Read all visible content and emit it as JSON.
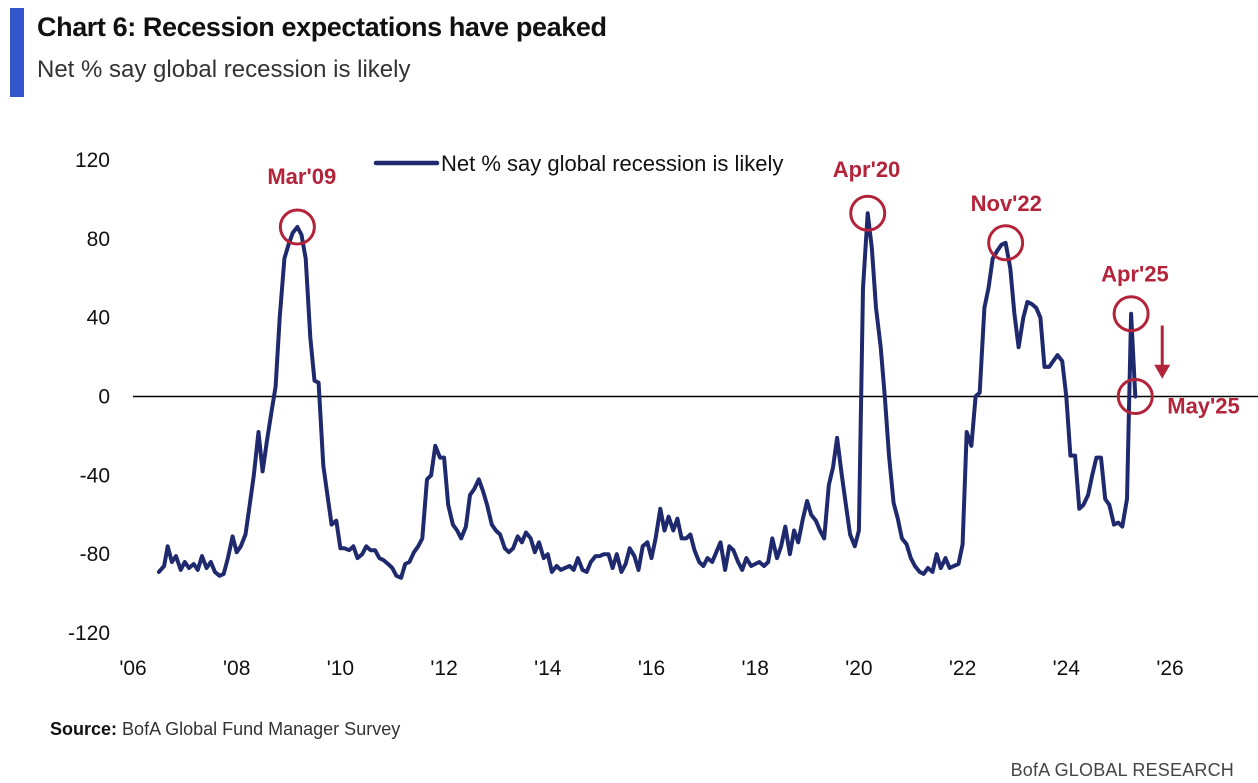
{
  "header": {
    "title": "Chart 6: Recession expectations have peaked",
    "subtitle": "Net % say global recession is likely"
  },
  "footer": {
    "source_label": "Source:",
    "source_text": "BofA Global Fund Manager Survey",
    "brand": "BofA GLOBAL RESEARCH"
  },
  "colors": {
    "accent": "#3355cc",
    "line": "#1f2a6e",
    "annotation": "#b3233a"
  },
  "chart_data": {
    "type": "line",
    "grid": false,
    "legend_position": "top",
    "xlim": [
      2006.0,
      2026.5
    ],
    "ylim": [
      -120,
      120
    ],
    "x_ticks": [
      {
        "value": 2006,
        "label": "'06"
      },
      {
        "value": 2008,
        "label": "'08"
      },
      {
        "value": 2010,
        "label": "'10"
      },
      {
        "value": 2012,
        "label": "'12"
      },
      {
        "value": 2014,
        "label": "'14"
      },
      {
        "value": 2016,
        "label": "'16"
      },
      {
        "value": 2018,
        "label": "'18"
      },
      {
        "value": 2020,
        "label": "'20"
      },
      {
        "value": 2022,
        "label": "'22"
      },
      {
        "value": 2024,
        "label": "'24"
      },
      {
        "value": 2026,
        "label": "'26"
      }
    ],
    "y_ticks": [
      {
        "value": 120,
        "label": "120"
      },
      {
        "value": 80,
        "label": "80"
      },
      {
        "value": 40,
        "label": "40"
      },
      {
        "value": 0,
        "label": "0"
      },
      {
        "value": -40,
        "label": "-40"
      },
      {
        "value": -80,
        "label": "-80"
      },
      {
        "value": -120,
        "label": "-120"
      }
    ],
    "series": [
      {
        "name": "Net % say global recession is likely",
        "points": [
          [
            2006.5,
            -89
          ],
          [
            2006.6,
            -86
          ],
          [
            2006.67,
            -76
          ],
          [
            2006.75,
            -84
          ],
          [
            2006.83,
            -81
          ],
          [
            2006.92,
            -88
          ],
          [
            2007.0,
            -84
          ],
          [
            2007.08,
            -87
          ],
          [
            2007.17,
            -85
          ],
          [
            2007.25,
            -88
          ],
          [
            2007.33,
            -81
          ],
          [
            2007.42,
            -87
          ],
          [
            2007.5,
            -84
          ],
          [
            2007.58,
            -89
          ],
          [
            2007.67,
            -91
          ],
          [
            2007.75,
            -90
          ],
          [
            2007.83,
            -82
          ],
          [
            2007.92,
            -71
          ],
          [
            2008.0,
            -79
          ],
          [
            2008.08,
            -76
          ],
          [
            2008.17,
            -70
          ],
          [
            2008.25,
            -55
          ],
          [
            2008.33,
            -40
          ],
          [
            2008.42,
            -18
          ],
          [
            2008.5,
            -38
          ],
          [
            2008.58,
            -23
          ],
          [
            2008.67,
            -8
          ],
          [
            2008.75,
            5
          ],
          [
            2008.83,
            40
          ],
          [
            2008.92,
            70
          ],
          [
            2009.0,
            77
          ],
          [
            2009.08,
            83
          ],
          [
            2009.17,
            86
          ],
          [
            2009.25,
            82
          ],
          [
            2009.33,
            70
          ],
          [
            2009.42,
            30
          ],
          [
            2009.5,
            8
          ],
          [
            2009.58,
            7
          ],
          [
            2009.67,
            -35
          ],
          [
            2009.75,
            -50
          ],
          [
            2009.83,
            -65
          ],
          [
            2009.92,
            -63
          ],
          [
            2010.0,
            -77
          ],
          [
            2010.08,
            -77
          ],
          [
            2010.17,
            -78
          ],
          [
            2010.25,
            -76
          ],
          [
            2010.33,
            -82
          ],
          [
            2010.42,
            -80
          ],
          [
            2010.5,
            -76
          ],
          [
            2010.58,
            -78
          ],
          [
            2010.67,
            -78
          ],
          [
            2010.75,
            -82
          ],
          [
            2010.83,
            -83
          ],
          [
            2010.92,
            -85
          ],
          [
            2011.0,
            -87
          ],
          [
            2011.08,
            -91
          ],
          [
            2011.17,
            -92
          ],
          [
            2011.25,
            -85
          ],
          [
            2011.33,
            -84
          ],
          [
            2011.42,
            -79
          ],
          [
            2011.5,
            -76
          ],
          [
            2011.58,
            -72
          ],
          [
            2011.67,
            -42
          ],
          [
            2011.75,
            -40
          ],
          [
            2011.83,
            -25
          ],
          [
            2011.92,
            -31
          ],
          [
            2012.0,
            -31
          ],
          [
            2012.08,
            -55
          ],
          [
            2012.17,
            -65
          ],
          [
            2012.25,
            -68
          ],
          [
            2012.33,
            -72
          ],
          [
            2012.42,
            -66
          ],
          [
            2012.5,
            -50
          ],
          [
            2012.58,
            -47
          ],
          [
            2012.67,
            -42
          ],
          [
            2012.75,
            -48
          ],
          [
            2012.83,
            -55
          ],
          [
            2012.92,
            -65
          ],
          [
            2013.0,
            -68
          ],
          [
            2013.08,
            -70
          ],
          [
            2013.17,
            -77
          ],
          [
            2013.25,
            -79
          ],
          [
            2013.33,
            -77
          ],
          [
            2013.42,
            -71
          ],
          [
            2013.5,
            -74
          ],
          [
            2013.58,
            -69
          ],
          [
            2013.67,
            -72
          ],
          [
            2013.75,
            -79
          ],
          [
            2013.83,
            -74
          ],
          [
            2013.92,
            -82
          ],
          [
            2014.0,
            -80
          ],
          [
            2014.08,
            -89
          ],
          [
            2014.17,
            -86
          ],
          [
            2014.25,
            -88
          ],
          [
            2014.33,
            -87
          ],
          [
            2014.42,
            -86
          ],
          [
            2014.5,
            -88
          ],
          [
            2014.58,
            -82
          ],
          [
            2014.67,
            -88
          ],
          [
            2014.75,
            -89
          ],
          [
            2014.83,
            -84
          ],
          [
            2014.92,
            -81
          ],
          [
            2015.0,
            -81
          ],
          [
            2015.08,
            -80
          ],
          [
            2015.17,
            -80
          ],
          [
            2015.25,
            -87
          ],
          [
            2015.33,
            -80
          ],
          [
            2015.42,
            -89
          ],
          [
            2015.5,
            -85
          ],
          [
            2015.58,
            -77
          ],
          [
            2015.67,
            -81
          ],
          [
            2015.75,
            -88
          ],
          [
            2015.83,
            -76
          ],
          [
            2015.92,
            -74
          ],
          [
            2016.0,
            -82
          ],
          [
            2016.08,
            -72
          ],
          [
            2016.17,
            -57
          ],
          [
            2016.25,
            -68
          ],
          [
            2016.33,
            -61
          ],
          [
            2016.42,
            -68
          ],
          [
            2016.5,
            -62
          ],
          [
            2016.58,
            -72
          ],
          [
            2016.67,
            -72
          ],
          [
            2016.75,
            -70
          ],
          [
            2016.83,
            -78
          ],
          [
            2016.92,
            -84
          ],
          [
            2017.0,
            -86
          ],
          [
            2017.08,
            -82
          ],
          [
            2017.17,
            -84
          ],
          [
            2017.25,
            -79
          ],
          [
            2017.33,
            -74
          ],
          [
            2017.42,
            -88
          ],
          [
            2017.5,
            -76
          ],
          [
            2017.58,
            -78
          ],
          [
            2017.67,
            -84
          ],
          [
            2017.75,
            -88
          ],
          [
            2017.83,
            -82
          ],
          [
            2017.92,
            -86
          ],
          [
            2018.0,
            -85
          ],
          [
            2018.08,
            -84
          ],
          [
            2018.17,
            -86
          ],
          [
            2018.25,
            -84
          ],
          [
            2018.33,
            -72
          ],
          [
            2018.42,
            -82
          ],
          [
            2018.5,
            -76
          ],
          [
            2018.58,
            -66
          ],
          [
            2018.67,
            -80
          ],
          [
            2018.75,
            -68
          ],
          [
            2018.83,
            -74
          ],
          [
            2018.92,
            -62
          ],
          [
            2019.0,
            -53
          ],
          [
            2019.08,
            -60
          ],
          [
            2019.17,
            -63
          ],
          [
            2019.25,
            -68
          ],
          [
            2019.33,
            -72
          ],
          [
            2019.42,
            -45
          ],
          [
            2019.5,
            -36
          ],
          [
            2019.58,
            -21
          ],
          [
            2019.67,
            -40
          ],
          [
            2019.75,
            -55
          ],
          [
            2019.83,
            -70
          ],
          [
            2019.92,
            -76
          ],
          [
            2020.0,
            -68
          ],
          [
            2020.08,
            55
          ],
          [
            2020.17,
            93
          ],
          [
            2020.25,
            75
          ],
          [
            2020.33,
            45
          ],
          [
            2020.42,
            25
          ],
          [
            2020.5,
            0
          ],
          [
            2020.58,
            -30
          ],
          [
            2020.67,
            -54
          ],
          [
            2020.75,
            -62
          ],
          [
            2020.83,
            -72
          ],
          [
            2020.92,
            -75
          ],
          [
            2021.0,
            -82
          ],
          [
            2021.08,
            -86
          ],
          [
            2021.17,
            -89
          ],
          [
            2021.25,
            -90
          ],
          [
            2021.33,
            -87
          ],
          [
            2021.42,
            -89
          ],
          [
            2021.5,
            -80
          ],
          [
            2021.58,
            -87
          ],
          [
            2021.67,
            -82
          ],
          [
            2021.75,
            -87
          ],
          [
            2021.83,
            -86
          ],
          [
            2021.92,
            -85
          ],
          [
            2022.0,
            -75
          ],
          [
            2022.08,
            -18
          ],
          [
            2022.17,
            -25
          ],
          [
            2022.25,
            0
          ],
          [
            2022.33,
            2
          ],
          [
            2022.42,
            45
          ],
          [
            2022.5,
            55
          ],
          [
            2022.58,
            70
          ],
          [
            2022.67,
            74
          ],
          [
            2022.75,
            77
          ],
          [
            2022.83,
            78
          ],
          [
            2022.92,
            65
          ],
          [
            2023.0,
            42
          ],
          [
            2023.08,
            25
          ],
          [
            2023.17,
            40
          ],
          [
            2023.25,
            48
          ],
          [
            2023.33,
            47
          ],
          [
            2023.42,
            45
          ],
          [
            2023.5,
            40
          ],
          [
            2023.58,
            15
          ],
          [
            2023.67,
            15
          ],
          [
            2023.75,
            18
          ],
          [
            2023.83,
            21
          ],
          [
            2023.92,
            18
          ],
          [
            2024.0,
            0
          ],
          [
            2024.08,
            -30
          ],
          [
            2024.17,
            -30
          ],
          [
            2024.25,
            -57
          ],
          [
            2024.33,
            -55
          ],
          [
            2024.42,
            -50
          ],
          [
            2024.5,
            -40
          ],
          [
            2024.58,
            -31
          ],
          [
            2024.67,
            -31
          ],
          [
            2024.75,
            -52
          ],
          [
            2024.83,
            -55
          ],
          [
            2024.92,
            -65
          ],
          [
            2025.0,
            -64
          ],
          [
            2025.08,
            -66
          ],
          [
            2025.17,
            -52
          ],
          [
            2025.25,
            42
          ],
          [
            2025.33,
            0
          ]
        ]
      }
    ],
    "annotations": [
      {
        "label": "Mar'09",
        "x": 2009.17,
        "y": 86,
        "label_dx": -30,
        "label_dy": -43
      },
      {
        "label": "Apr'20",
        "x": 2020.17,
        "y": 93,
        "label_dx": -35,
        "label_dy": -36
      },
      {
        "label": "Nov'22",
        "x": 2022.83,
        "y": 78,
        "label_dx": -35,
        "label_dy": -32
      },
      {
        "label": "Apr'25",
        "x": 2025.25,
        "y": 42,
        "label_dx": -30,
        "label_dy": -32
      },
      {
        "label": "May'25",
        "x": 2025.33,
        "y": 0,
        "label_dx": 32,
        "label_dy": 17
      }
    ],
    "arrow": {
      "x": 2025.85,
      "y_from": 36,
      "y_to": 10
    }
  }
}
